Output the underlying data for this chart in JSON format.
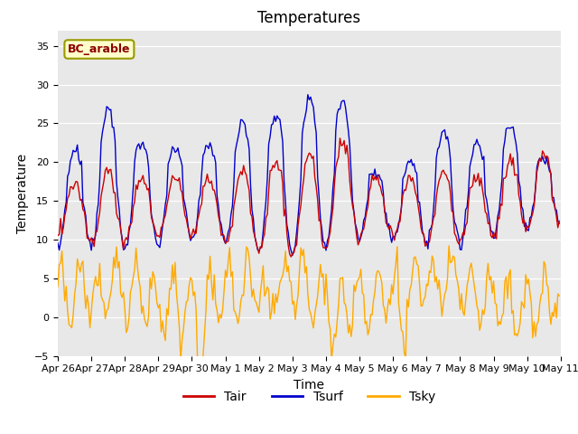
{
  "title": "Temperatures",
  "xlabel": "Time",
  "ylabel": "Temperature",
  "annotation": "BC_arable",
  "ylim": [
    -5,
    37
  ],
  "yticks": [
    -5,
    0,
    5,
    10,
    15,
    20,
    25,
    30,
    35
  ],
  "xtick_labels": [
    "Apr 26",
    "Apr 27",
    "Apr 28",
    "Apr 29",
    "Apr 30",
    "May 1",
    "May 2",
    "May 3",
    "May 4",
    "May 5",
    "May 6",
    "May 7",
    "May 8",
    "May 9",
    "May 10",
    "May 11"
  ],
  "line_colors": {
    "Tair": "#cc0000",
    "Tsurf": "#0000cc",
    "Tsky": "#ffaa00"
  },
  "bg_color": "#e8e8e8",
  "title_fontsize": 12,
  "axis_fontsize": 10,
  "tick_fontsize": 8,
  "n_per_day": 24,
  "n_days": 15
}
